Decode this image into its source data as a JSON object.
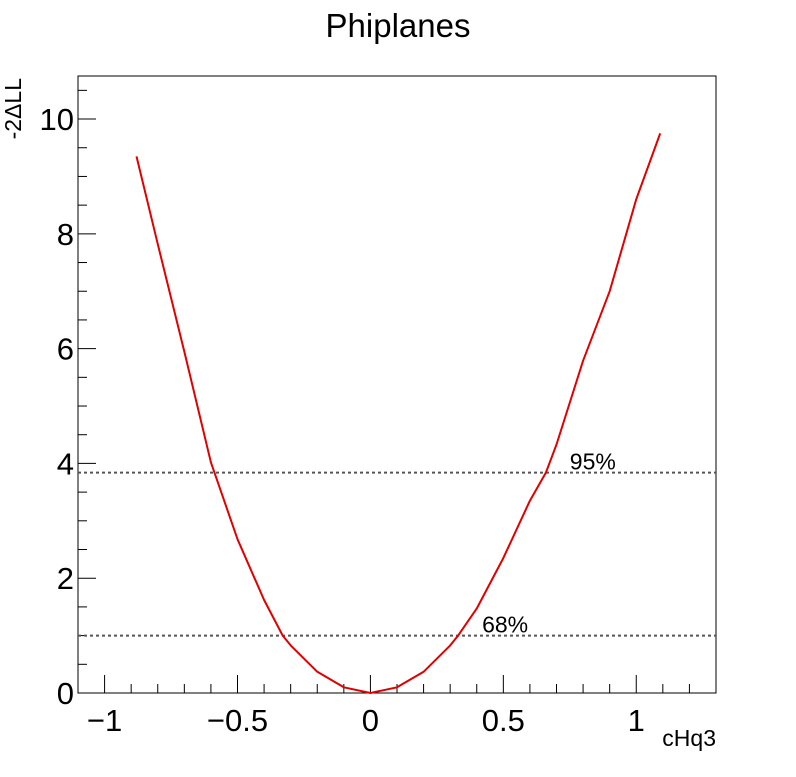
{
  "chart_data": {
    "type": "line",
    "title": "Phiplanes",
    "xlabel": "cHq3",
    "ylabel": "-2ΔLL",
    "xlim": [
      -1.1,
      1.3
    ],
    "ylim": [
      0,
      10.75
    ],
    "x_ticks": [
      -1,
      -0.5,
      0,
      0.5,
      1
    ],
    "x_tick_labels": [
      "−1",
      "−0.5",
      "0",
      "0.5",
      "1"
    ],
    "y_ticks": [
      0,
      2,
      4,
      6,
      8,
      10
    ],
    "y_tick_labels": [
      "0",
      "2",
      "4",
      "6",
      "8",
      "10"
    ],
    "grid": false,
    "legend": "none",
    "colors": {
      "curve": "#e00000",
      "threshold": "#555555",
      "axes": "#000000"
    },
    "series": [
      {
        "x": [
          -0.88,
          -0.8,
          -0.7,
          -0.6,
          -0.5,
          -0.4,
          -0.33,
          -0.3,
          -0.2,
          -0.1,
          0.0,
          0.1,
          0.2,
          0.3,
          0.33,
          0.4,
          0.5,
          0.6,
          0.66,
          0.7,
          0.8,
          0.9,
          1.0,
          1.09
        ],
        "y": [
          9.35,
          7.82,
          5.95,
          4.02,
          2.68,
          1.62,
          1.0,
          0.83,
          0.37,
          0.1,
          0.0,
          0.1,
          0.37,
          0.83,
          1.0,
          1.47,
          2.35,
          3.35,
          3.84,
          4.33,
          5.79,
          7.0,
          8.6,
          9.75
        ]
      }
    ],
    "thresholds": [
      {
        "y": 3.84,
        "label": "95%",
        "label_x": 0.75
      },
      {
        "y": 1.0,
        "label": "68%",
        "label_x": 0.42
      }
    ]
  }
}
